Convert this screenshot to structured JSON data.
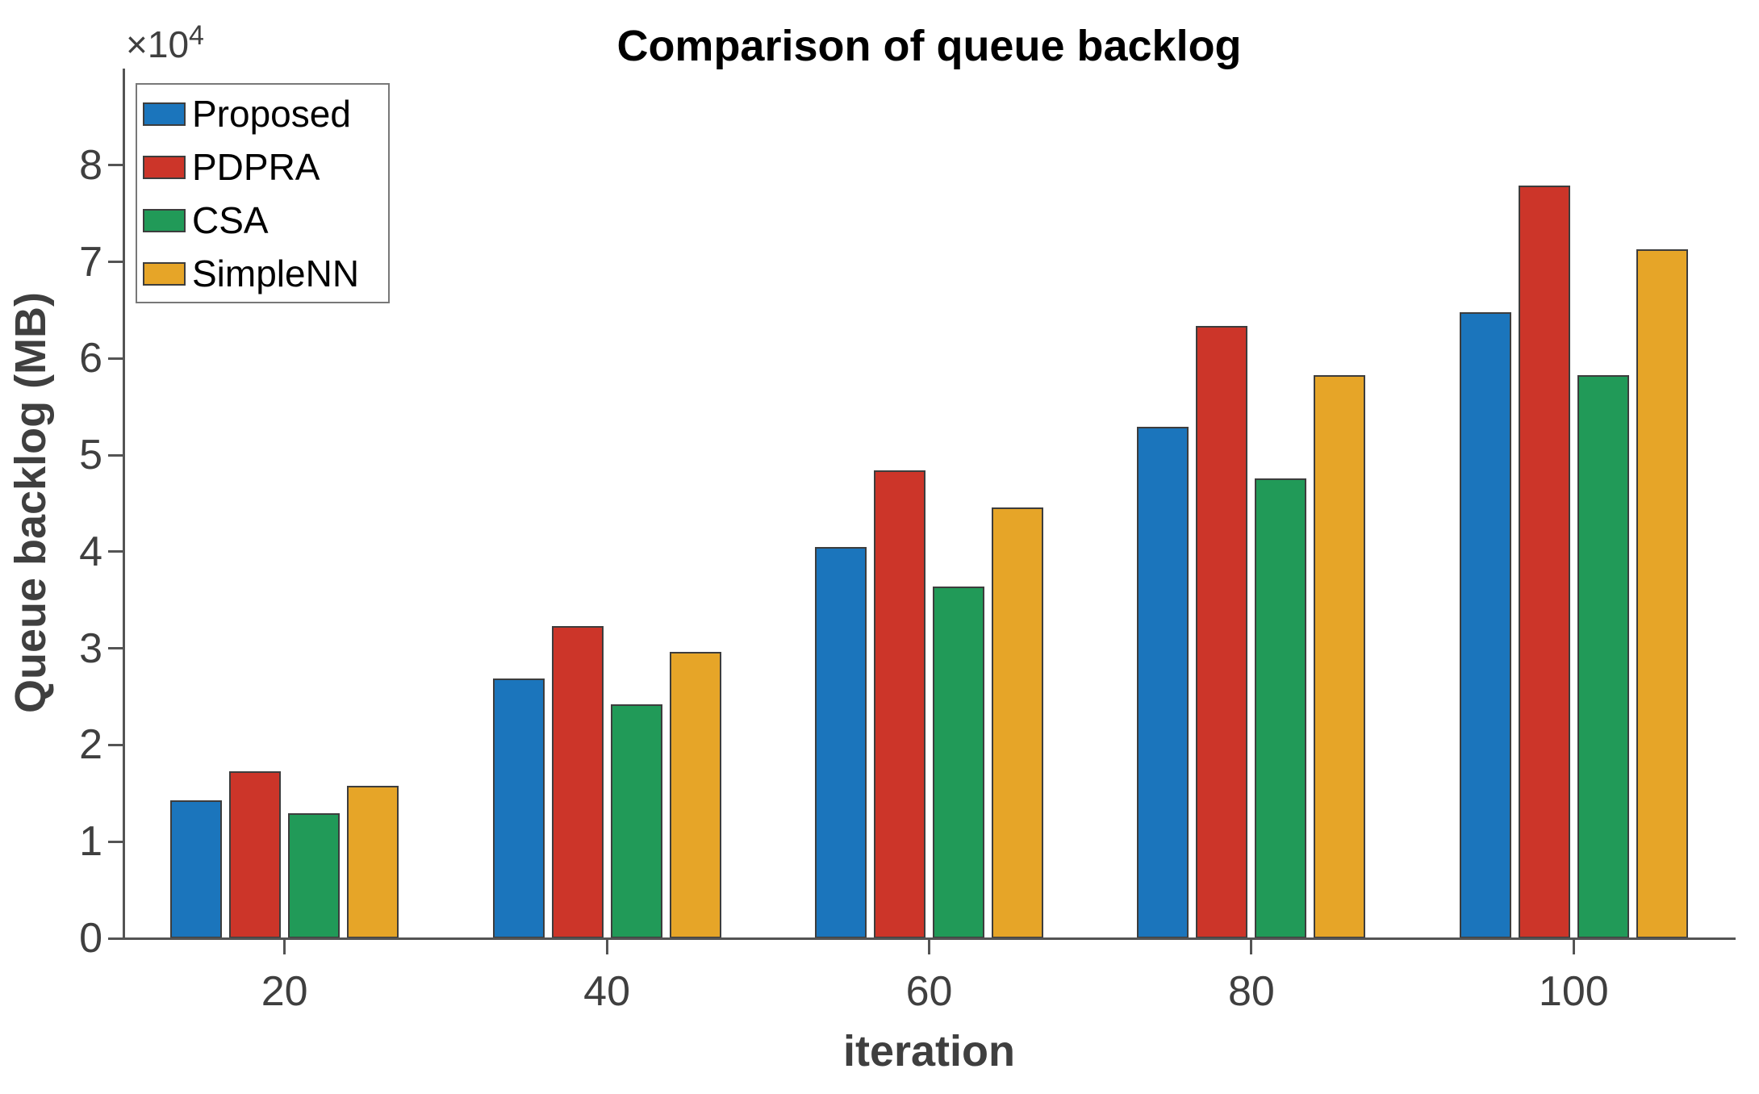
{
  "chart_data": {
    "type": "bar",
    "title": "Comparison of queue backlog",
    "xlabel": "iteration",
    "ylabel": "Queue backlog (MB)",
    "y_offset_base": "×10",
    "y_offset_exponent": "4",
    "categories": [
      "20",
      "40",
      "60",
      "80",
      "100"
    ],
    "series": [
      {
        "name": "Proposed",
        "color": "#1b75bc",
        "values": [
          14300,
          26900,
          40500,
          52900,
          64800
        ]
      },
      {
        "name": "PDPRA",
        "color": "#cc3529",
        "values": [
          17300,
          32300,
          48400,
          63400,
          77900
        ]
      },
      {
        "name": "CSA",
        "color": "#219a58",
        "values": [
          12900,
          24200,
          36400,
          47600,
          58300
        ]
      },
      {
        "name": "SimpleNN",
        "color": "#e6a528",
        "values": [
          15800,
          29600,
          44600,
          58300,
          71300
        ]
      }
    ],
    "ylim": [
      0,
      90000
    ],
    "yticks": [
      0,
      10000,
      20000,
      30000,
      40000,
      50000,
      60000,
      70000,
      80000
    ],
    "ytick_labels": [
      "0",
      "1",
      "2",
      "3",
      "4",
      "5",
      "6",
      "7",
      "8"
    ],
    "xlim": [
      10,
      110
    ],
    "legend_position": "top-left",
    "grid": false,
    "colors": {
      "axis": "#545454",
      "tick_label": "#3f3f3f",
      "title": "#000000",
      "bar_edge": "#3d3d3d",
      "legend_border": "#787878"
    }
  }
}
